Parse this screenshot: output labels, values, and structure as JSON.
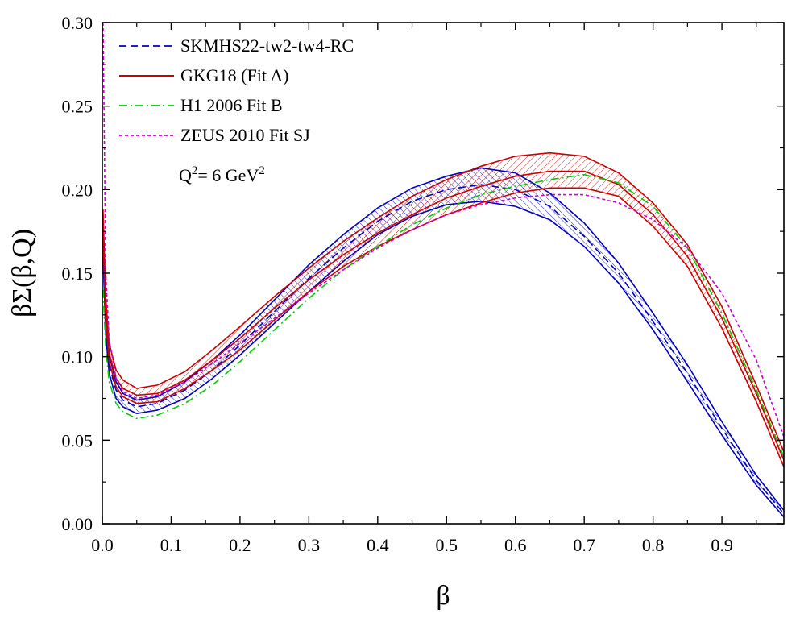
{
  "chart_data": {
    "type": "line",
    "xlabel": "β",
    "ylabel": "βΣ(β,Q)",
    "xlim": [
      0.0,
      0.99
    ],
    "ylim": [
      0.0,
      0.3
    ],
    "x_ticks": [
      "0.0",
      "0.1",
      "0.2",
      "0.3",
      "0.4",
      "0.5",
      "0.6",
      "0.7",
      "0.8",
      "0.9"
    ],
    "x_tick_values": [
      0.0,
      0.1,
      0.2,
      0.3,
      0.4,
      0.5,
      0.6,
      0.7,
      0.8,
      0.9
    ],
    "y_ticks": [
      "0.00",
      "0.05",
      "0.10",
      "0.15",
      "0.20",
      "0.25",
      "0.30"
    ],
    "y_tick_values": [
      0.0,
      0.05,
      0.1,
      0.15,
      0.2,
      0.25,
      0.3
    ],
    "grid": false,
    "legend_position": "top-left",
    "annotation": {
      "prefix": "Q",
      "sup1": "2",
      "middle": "= 6 GeV",
      "sup2": "2"
    },
    "series": [
      {
        "name": "SKMHS22-tw2-tw4-RC",
        "color": "#0000c0",
        "style": "dashed",
        "band": true,
        "x": [
          0.001,
          0.005,
          0.01,
          0.02,
          0.03,
          0.05,
          0.08,
          0.12,
          0.16,
          0.2,
          0.25,
          0.3,
          0.35,
          0.4,
          0.45,
          0.5,
          0.55,
          0.6,
          0.65,
          0.7,
          0.75,
          0.8,
          0.85,
          0.9,
          0.95,
          0.99
        ],
        "y": [
          0.17,
          0.12,
          0.095,
          0.08,
          0.074,
          0.07,
          0.072,
          0.08,
          0.092,
          0.107,
          0.127,
          0.147,
          0.165,
          0.181,
          0.193,
          0.2,
          0.203,
          0.2,
          0.19,
          0.172,
          0.15,
          0.121,
          0.09,
          0.057,
          0.026,
          0.006
        ],
        "upper": [
          0.18,
          0.128,
          0.101,
          0.085,
          0.078,
          0.074,
          0.076,
          0.085,
          0.098,
          0.113,
          0.134,
          0.155,
          0.173,
          0.189,
          0.201,
          0.208,
          0.213,
          0.21,
          0.198,
          0.18,
          0.156,
          0.126,
          0.095,
          0.061,
          0.029,
          0.008
        ],
        "lower": [
          0.16,
          0.113,
          0.09,
          0.075,
          0.07,
          0.066,
          0.068,
          0.075,
          0.087,
          0.101,
          0.12,
          0.139,
          0.157,
          0.173,
          0.184,
          0.191,
          0.193,
          0.19,
          0.182,
          0.166,
          0.144,
          0.116,
          0.085,
          0.053,
          0.023,
          0.004
        ]
      },
      {
        "name": "GKG18 (Fit A)",
        "color": "#cc0000",
        "style": "solid",
        "band": true,
        "x": [
          0.001,
          0.005,
          0.01,
          0.02,
          0.03,
          0.05,
          0.08,
          0.12,
          0.16,
          0.2,
          0.25,
          0.3,
          0.35,
          0.4,
          0.45,
          0.5,
          0.55,
          0.6,
          0.65,
          0.7,
          0.75,
          0.8,
          0.85,
          0.9,
          0.95,
          0.99
        ],
        "y": [
          0.18,
          0.128,
          0.102,
          0.087,
          0.081,
          0.077,
          0.078,
          0.086,
          0.098,
          0.111,
          0.129,
          0.146,
          0.161,
          0.174,
          0.185,
          0.195,
          0.202,
          0.208,
          0.211,
          0.211,
          0.203,
          0.185,
          0.16,
          0.123,
          0.078,
          0.038
        ],
        "upper": [
          0.188,
          0.135,
          0.108,
          0.092,
          0.086,
          0.081,
          0.083,
          0.091,
          0.104,
          0.118,
          0.136,
          0.153,
          0.169,
          0.183,
          0.196,
          0.206,
          0.214,
          0.22,
          0.222,
          0.22,
          0.21,
          0.192,
          0.167,
          0.13,
          0.083,
          0.043
        ],
        "lower": [
          0.172,
          0.122,
          0.097,
          0.082,
          0.076,
          0.072,
          0.073,
          0.081,
          0.092,
          0.104,
          0.122,
          0.139,
          0.154,
          0.166,
          0.176,
          0.185,
          0.192,
          0.198,
          0.201,
          0.201,
          0.196,
          0.178,
          0.154,
          0.117,
          0.073,
          0.034
        ]
      },
      {
        "name": "H1 2006 Fit B",
        "color": "#00cc00",
        "style": "dashdot",
        "band": false,
        "x": [
          0.001,
          0.005,
          0.01,
          0.02,
          0.03,
          0.05,
          0.08,
          0.12,
          0.16,
          0.2,
          0.25,
          0.3,
          0.35,
          0.4,
          0.45,
          0.5,
          0.55,
          0.6,
          0.65,
          0.7,
          0.75,
          0.8,
          0.85,
          0.9,
          0.95,
          0.99
        ],
        "y": [
          0.14,
          0.105,
          0.085,
          0.072,
          0.067,
          0.063,
          0.065,
          0.072,
          0.083,
          0.097,
          0.116,
          0.135,
          0.152,
          0.166,
          0.179,
          0.189,
          0.197,
          0.202,
          0.206,
          0.209,
          0.204,
          0.19,
          0.165,
          0.126,
          0.08,
          0.04
        ]
      },
      {
        "name": "ZEUS 2010 Fit SJ",
        "color": "#cc00cc",
        "style": "dotted",
        "band": false,
        "x": [
          0.001,
          0.005,
          0.01,
          0.02,
          0.03,
          0.05,
          0.08,
          0.12,
          0.16,
          0.2,
          0.25,
          0.3,
          0.35,
          0.4,
          0.45,
          0.5,
          0.55,
          0.6,
          0.65,
          0.7,
          0.75,
          0.8,
          0.85,
          0.9,
          0.95,
          0.99
        ],
        "y": [
          0.3,
          0.15,
          0.11,
          0.087,
          0.079,
          0.075,
          0.077,
          0.085,
          0.096,
          0.108,
          0.123,
          0.138,
          0.152,
          0.165,
          0.176,
          0.185,
          0.191,
          0.195,
          0.197,
          0.197,
          0.192,
          0.182,
          0.165,
          0.138,
          0.098,
          0.052
        ]
      }
    ]
  }
}
